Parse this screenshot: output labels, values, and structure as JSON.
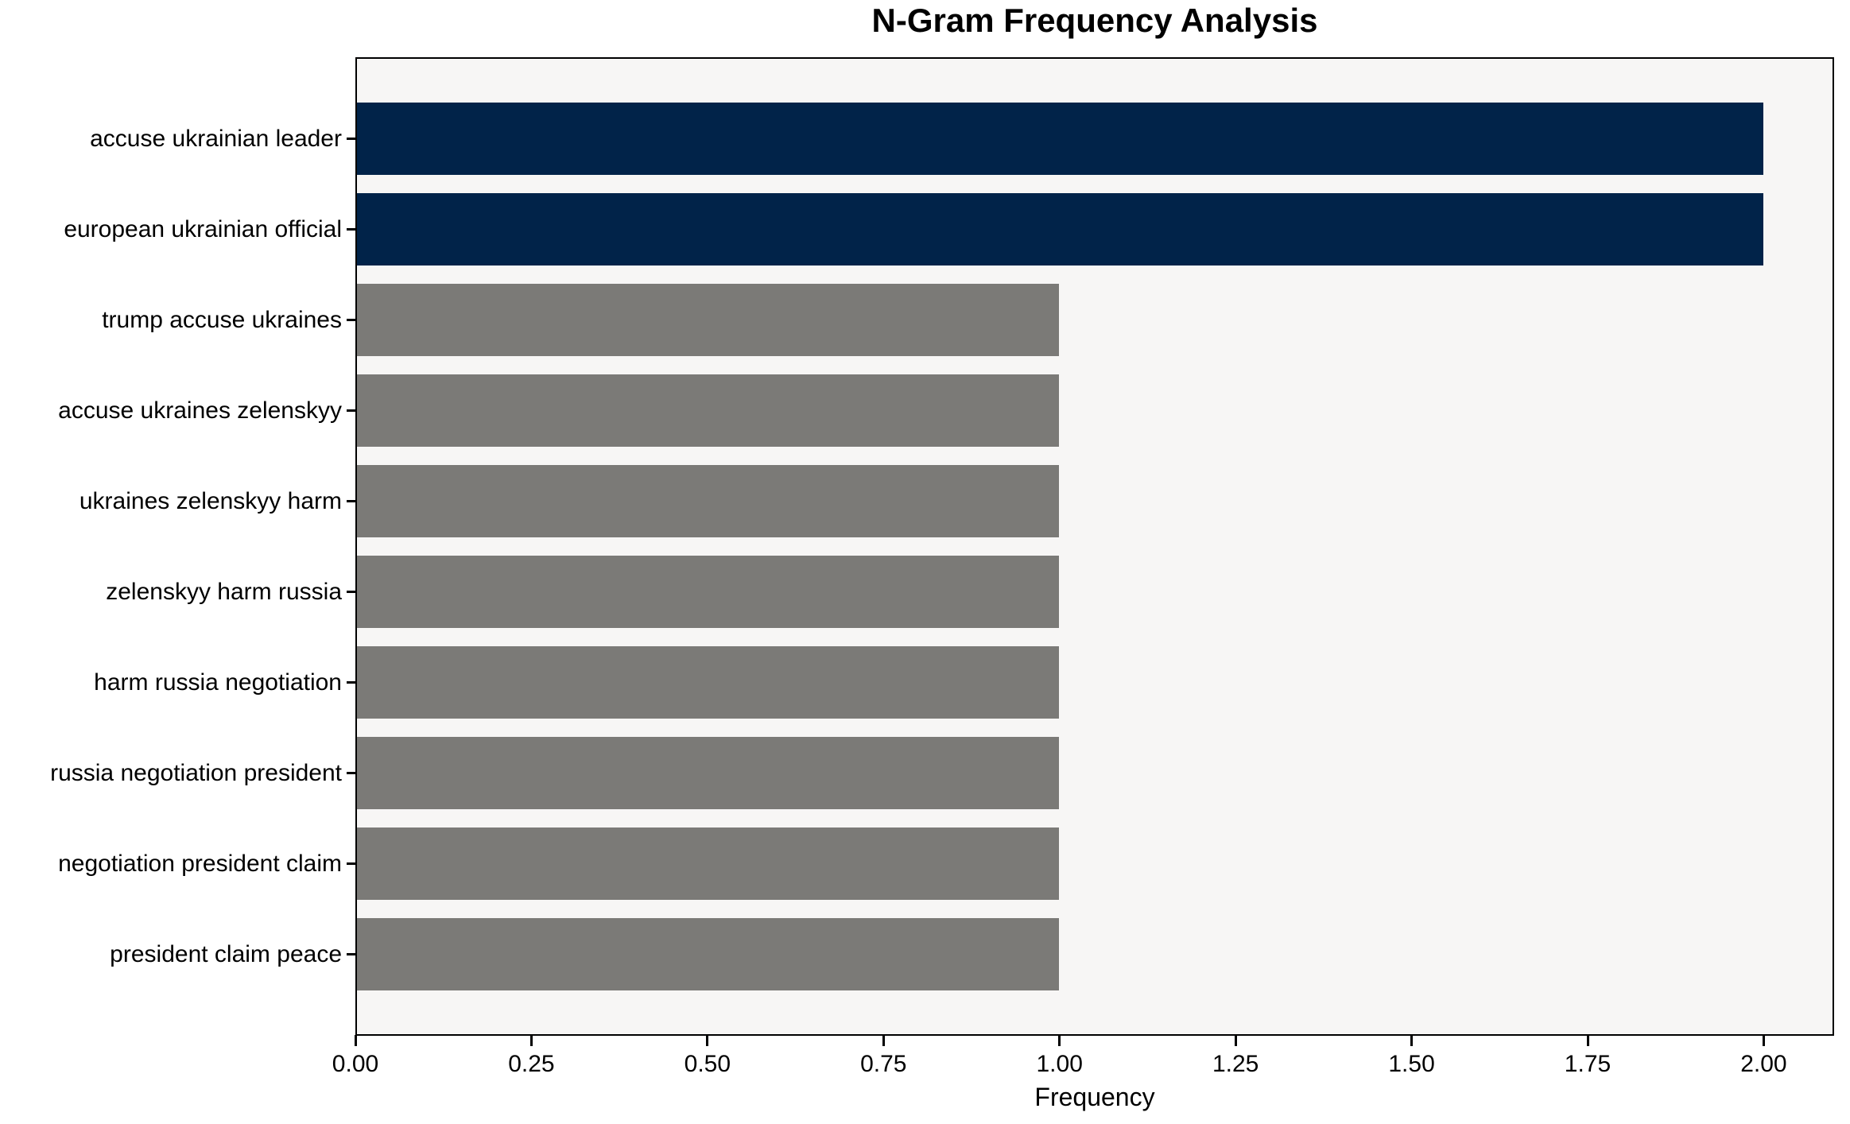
{
  "chart_data": {
    "type": "bar",
    "orientation": "horizontal",
    "title": "N-Gram Frequency Analysis",
    "xlabel": "Frequency",
    "ylabel": "",
    "categories": [
      "accuse ukrainian leader",
      "european ukrainian official",
      "trump accuse ukraines",
      "accuse ukraines zelenskyy",
      "ukraines zelenskyy harm",
      "zelenskyy harm russia",
      "harm russia negotiation",
      "russia negotiation president",
      "negotiation president claim",
      "president claim peace"
    ],
    "values": [
      2,
      2,
      1,
      1,
      1,
      1,
      1,
      1,
      1,
      1
    ],
    "bar_colors": [
      "#012349",
      "#012349",
      "#7b7a77",
      "#7b7a77",
      "#7b7a77",
      "#7b7a77",
      "#7b7a77",
      "#7b7a77",
      "#7b7a77",
      "#7b7a77"
    ],
    "xlim": [
      0,
      2.1
    ],
    "x_tick_values": [
      0,
      0.25,
      0.5,
      0.75,
      1.0,
      1.25,
      1.5,
      1.75,
      2.0
    ],
    "x_tick_labels": [
      "0.00",
      "0.25",
      "0.50",
      "0.75",
      "1.00",
      "1.25",
      "1.50",
      "1.75",
      "2.00"
    ],
    "grid": false,
    "legend_position": "none",
    "colors": {
      "highlight_bar": "#012349",
      "default_bar": "#7b7a77",
      "plot_background": "#f7f6f5",
      "figure_background": "#ffffff",
      "spine": "#000000",
      "text": "#000000"
    }
  }
}
